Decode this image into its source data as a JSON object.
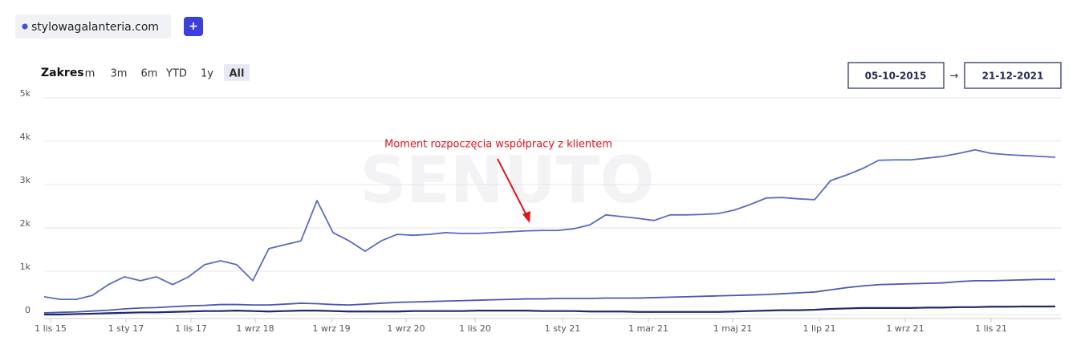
{
  "ui": {
    "domain": "stylowagalanteria.com",
    "add_button": "+",
    "range_label": "Zakres",
    "range_options": [
      "m",
      "3m",
      "6m",
      "YTD",
      "1y",
      "All"
    ],
    "active_range": 5,
    "date_from": "05-10-2015",
    "date_arrow": "→",
    "date_to": "21-12-2021"
  },
  "chart_data": {
    "type": "line",
    "watermark": "SENUTO",
    "annotation": "Moment rozpoczęcia współpracy z klientem",
    "x": [
      0,
      1,
      2,
      3,
      4,
      5,
      6,
      7,
      8,
      9,
      10,
      11,
      12,
      13,
      14,
      15,
      16,
      17,
      18,
      19,
      20,
      21,
      22,
      23,
      24,
      25,
      26,
      27,
      28,
      29,
      30,
      31,
      32,
      33,
      34,
      35,
      36,
      37,
      38,
      39,
      40,
      41,
      42,
      43,
      44,
      45,
      46,
      47,
      48,
      49,
      50,
      51,
      52,
      53,
      54,
      55,
      56,
      57,
      58,
      59,
      60,
      61,
      62,
      63
    ],
    "xlim": [
      0,
      63.4
    ],
    "xticks": [
      {
        "value": 0.4,
        "label": "1 lis 15"
      },
      {
        "value": 5.1,
        "label": "1 sty 17"
      },
      {
        "value": 9.15,
        "label": "1 lis 17"
      },
      {
        "value": 13.15,
        "label": "1 wrz 18"
      },
      {
        "value": 17.9,
        "label": "1 wrz 19"
      },
      {
        "value": 22.55,
        "label": "1 wrz 20"
      },
      {
        "value": 26.85,
        "label": "1 lis 20"
      },
      {
        "value": 32.3,
        "label": "1 sty 21"
      },
      {
        "value": 37.65,
        "label": "1 mar 21"
      },
      {
        "value": 42.9,
        "label": "1 maj 21"
      },
      {
        "value": 48.3,
        "label": "1 lip 21"
      },
      {
        "value": 53.65,
        "label": "1 wrz 21"
      },
      {
        "value": 59,
        "label": "1 lis 21"
      }
    ],
    "ylim": [
      0,
      5000
    ],
    "yticks": [
      0,
      {
        "value": 1000,
        "label": "1k"
      },
      {
        "value": 2000,
        "label": "2k"
      },
      {
        "value": 3000,
        "label": "3k"
      },
      {
        "value": 4000,
        "label": "4k"
      },
      {
        "value": 5000,
        "label": "5k"
      }
    ],
    "grid": true,
    "series": [
      {
        "color": "#5b6bbf",
        "values": [
          410,
          350,
          350,
          440,
          690,
          870,
          780,
          870,
          690,
          870,
          1150,
          1240,
          1150,
          780,
          1520,
          1610,
          1700,
          2630,
          1890,
          1700,
          1460,
          1700,
          1850,
          1830,
          1850,
          1890,
          1870,
          1870,
          1890,
          1910,
          1930,
          1940,
          1940,
          1980,
          2070,
          2300,
          2260,
          2220,
          2170,
          2300,
          2300,
          2310,
          2330,
          2410,
          2540,
          2690,
          2700,
          2670,
          2650,
          3090,
          3220,
          3370,
          3560,
          3570,
          3570,
          3610,
          3650,
          3720,
          3800,
          3720,
          3690,
          3670,
          3650,
          3630
        ]
      },
      {
        "color": "#4a59ad",
        "values": [
          40,
          50,
          60,
          80,
          100,
          130,
          150,
          160,
          180,
          200,
          210,
          230,
          230,
          220,
          220,
          240,
          260,
          250,
          230,
          220,
          240,
          260,
          280,
          290,
          300,
          310,
          320,
          330,
          340,
          350,
          360,
          360,
          370,
          370,
          370,
          380,
          380,
          380,
          390,
          400,
          410,
          420,
          430,
          440,
          450,
          460,
          480,
          500,
          520,
          570,
          620,
          660,
          690,
          700,
          710,
          720,
          730,
          760,
          780,
          780,
          790,
          800,
          810,
          810
        ]
      },
      {
        "color": "#1f2a6b",
        "values": [
          0,
          0,
          10,
          20,
          30,
          40,
          50,
          50,
          60,
          70,
          80,
          80,
          90,
          80,
          70,
          80,
          90,
          90,
          80,
          70,
          70,
          70,
          70,
          80,
          80,
          80,
          80,
          90,
          90,
          90,
          90,
          80,
          80,
          80,
          70,
          70,
          70,
          60,
          60,
          60,
          60,
          60,
          60,
          70,
          80,
          90,
          100,
          100,
          110,
          130,
          140,
          150,
          150,
          150,
          150,
          160,
          160,
          170,
          170,
          180,
          180,
          185,
          185,
          185
        ]
      }
    ]
  }
}
